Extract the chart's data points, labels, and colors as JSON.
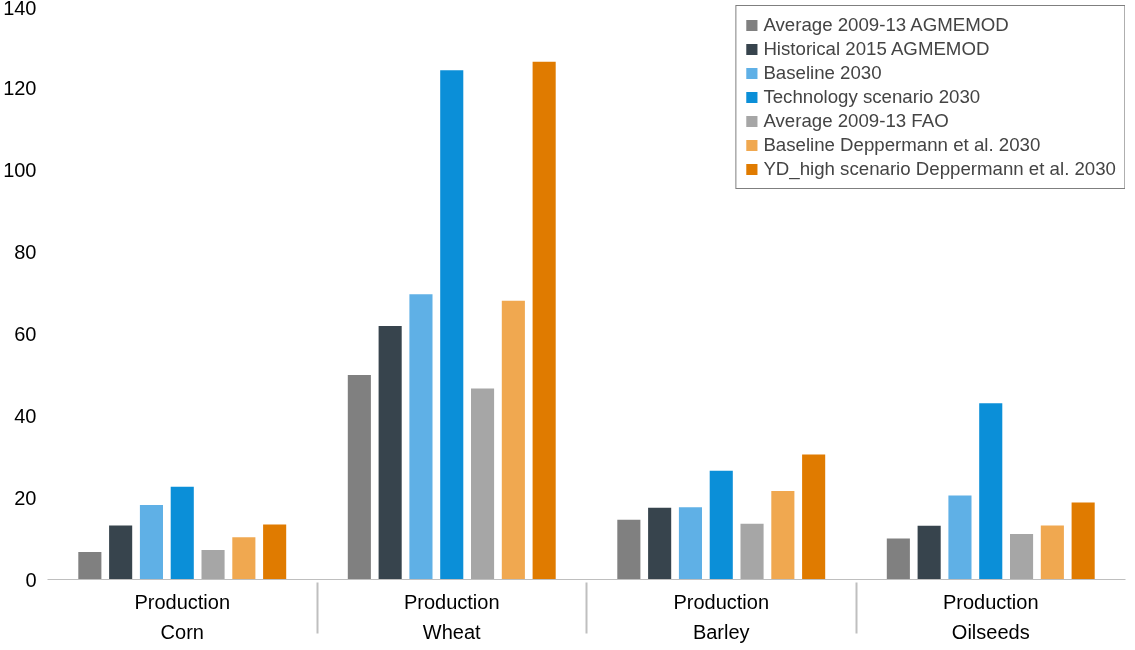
{
  "chart_data": {
    "type": "bar",
    "categories": [
      "Production\nCorn",
      "Production\nWheat",
      "Production\nBarley",
      "Production\nOilseeds"
    ],
    "series": [
      {
        "name": "Average 2009-13 AGMEMOD",
        "color": "#808080",
        "values": [
          6.7,
          49.9,
          14.6,
          10.0
        ]
      },
      {
        "name": "Historical 2015 AGMEMOD",
        "color": "#37444d",
        "values": [
          13.2,
          61.8,
          17.5,
          13.1
        ]
      },
      {
        "name": "Baseline 2030",
        "color": "#5fb0e6",
        "values": [
          18.2,
          69.6,
          17.6,
          20.5
        ]
      },
      {
        "name": "Technology scenario 2030",
        "color": "#0b8fd8",
        "values": [
          22.6,
          124.2,
          26.5,
          43.0
        ]
      },
      {
        "name": "Average 2009-13 FAO",
        "color": "#a6a6a6",
        "values": [
          7.2,
          46.6,
          13.6,
          11.1
        ]
      },
      {
        "name": "Baseline Deppermann et al. 2030",
        "color": "#f0a850",
        "values": [
          10.3,
          68.0,
          21.6,
          13.2
        ]
      },
      {
        "name": "YD_high scenario Deppermann et al. 2030",
        "color": "#e07b00",
        "values": [
          13.4,
          126.3,
          30.5,
          18.8
        ]
      }
    ],
    "ylim": [
      0,
      140
    ],
    "yticks": [
      0,
      20,
      40,
      60,
      80,
      100,
      120,
      140
    ],
    "grid": false,
    "legend": "top right"
  }
}
